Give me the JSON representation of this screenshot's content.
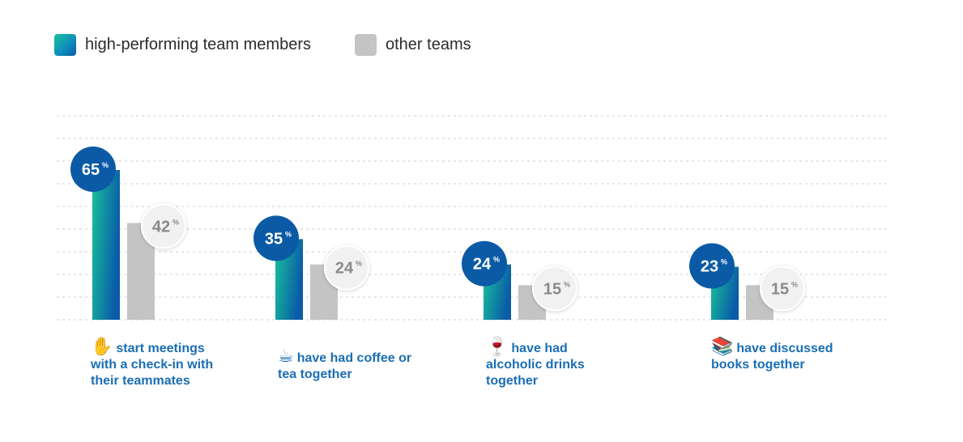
{
  "legend": {
    "high_label": "high-performing team members",
    "other_label": "other teams"
  },
  "colors": {
    "high_start": "#18c39a",
    "high_end": "#0a5ba8",
    "other": "#c4c4c4",
    "badge_high": "#0b5aa6",
    "badge_other": "#f1f1f1",
    "caption": "#1a6eb4"
  },
  "chart_data": {
    "type": "bar",
    "categories": [
      "start meetings with a check-in with their teammates",
      "have had coffee or tea together",
      "have had alcoholic drinks together",
      "have discussed books together"
    ],
    "category_icons": [
      "raised-hand-icon",
      "coffee-icon",
      "wine-glass-icon",
      "books-icon"
    ],
    "series": [
      {
        "name": "high-performing team members",
        "values": [
          65,
          35,
          24,
          23
        ]
      },
      {
        "name": "other teams",
        "values": [
          42,
          24,
          15,
          15
        ]
      }
    ],
    "unit": "%",
    "ylim": [
      0,
      90
    ],
    "grid": true,
    "legend_position": "top-left"
  }
}
